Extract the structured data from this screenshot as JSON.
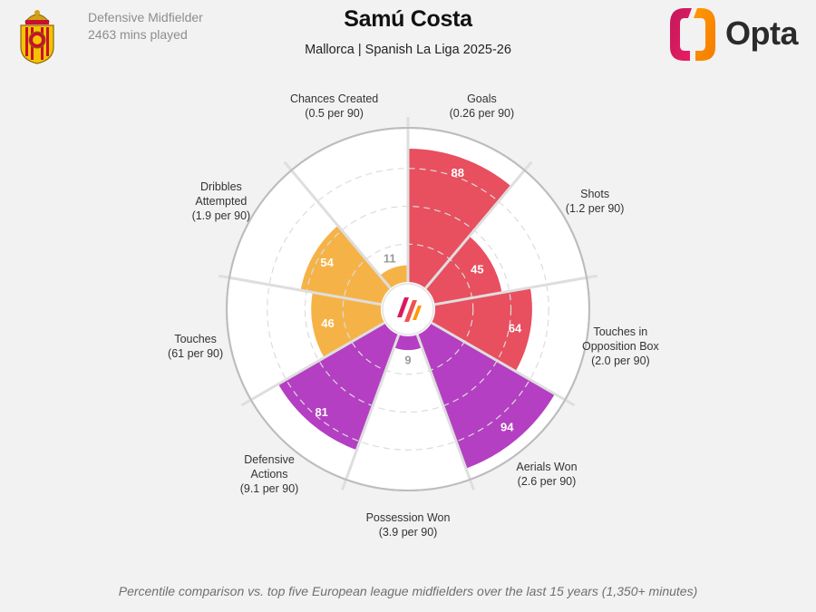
{
  "header": {
    "role": "Defensive Midfielder",
    "minutes": "2463 mins played",
    "title": "Samú Costa",
    "subtitle": "Mallorca | Spanish La Liga 2025-26",
    "brand": "Opta",
    "crest_icon": "mallorca-crest-icon",
    "brand_icon": "opta-logo-icon"
  },
  "footnote": "Percentile comparison vs. top five European league midfielders over the last 15 years (1,350+ minutes)",
  "chart_data": {
    "type": "radial-bar",
    "scale": [
      0,
      100
    ],
    "grid": true,
    "metrics": [
      {
        "name": "Goals",
        "sub": "(0.26 per 90)",
        "value": 88,
        "color": "#e84f5f"
      },
      {
        "name": "Shots",
        "sub": "(1.2 per 90)",
        "value": 45,
        "color": "#e84f5f"
      },
      {
        "name": "Touches in Opposition Box",
        "sub": "(2.0 per 90)",
        "value": 64,
        "color": "#e84f5f"
      },
      {
        "name": "Aerials Won",
        "sub": "(2.6 per 90)",
        "value": 94,
        "color": "#b43fc2"
      },
      {
        "name": "Possession Won",
        "sub": "(3.9 per 90)",
        "value": 9,
        "color": "#b43fc2"
      },
      {
        "name": "Defensive Actions",
        "sub": "(9.1 per 90)",
        "value": 81,
        "color": "#b43fc2"
      },
      {
        "name": "Touches",
        "sub": "(61 per 90)",
        "value": 46,
        "color": "#f5b347"
      },
      {
        "name": "Dribbles Attempted",
        "sub": "(1.9 per 90)",
        "value": 54,
        "color": "#f5b347"
      },
      {
        "name": "Chances Created",
        "sub": "(0.5 per 90)",
        "value": 11,
        "color": "#f5b347"
      }
    ]
  }
}
